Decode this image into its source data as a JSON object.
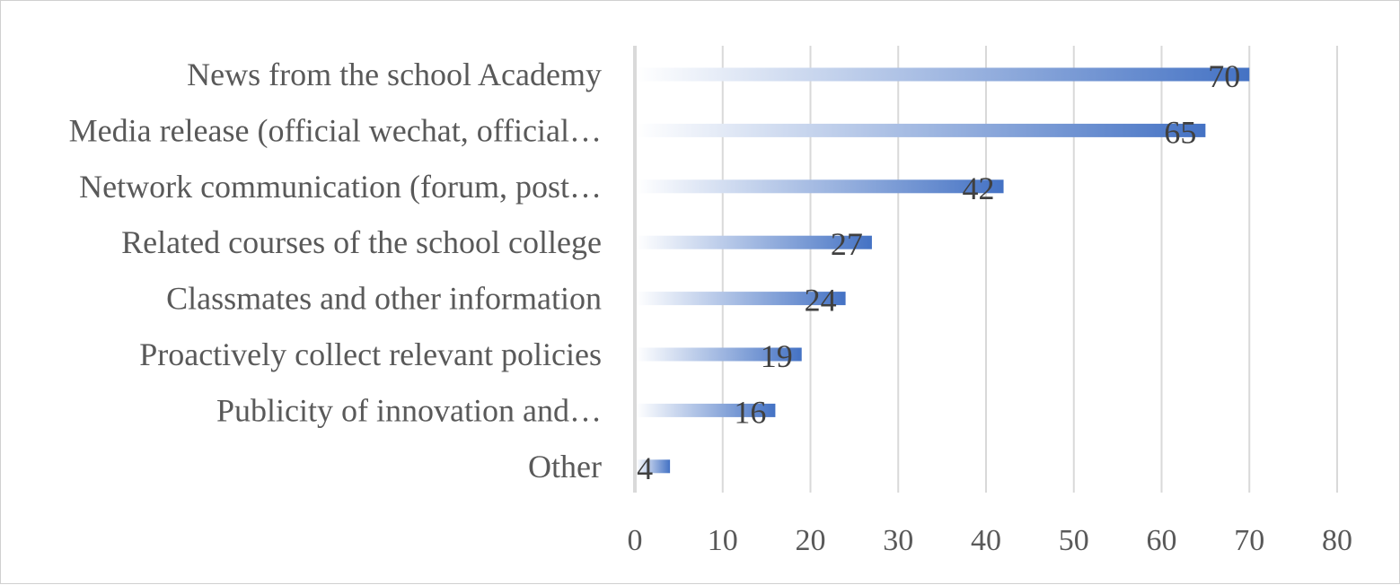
{
  "chart_data": {
    "type": "bar",
    "orientation": "horizontal",
    "categories": [
      "News from the school Academy",
      "Media release (official wechat, official…",
      "Network communication (forum, post…",
      "Related courses of the school college",
      "Classmates and other information",
      "Proactively collect relevant policies",
      "Publicity of innovation and…",
      "Other"
    ],
    "values": [
      70,
      65,
      42,
      27,
      24,
      19,
      16,
      4
    ],
    "data_labels": [
      "70",
      "65",
      "42",
      "27",
      "24",
      "19",
      "16",
      "4"
    ],
    "xlim": [
      0,
      80
    ],
    "x_ticks": [
      0,
      10,
      20,
      30,
      40,
      50,
      60,
      70,
      80
    ],
    "x_tick_labels": [
      "0",
      "10",
      "20",
      "30",
      "40",
      "50",
      "60",
      "70",
      "80"
    ],
    "grid": "vertical",
    "legend": "none",
    "title": "",
    "xlabel": "",
    "ylabel": "",
    "colors": {
      "bar_start": "#ffffff",
      "bar_end": "#4472c4",
      "gridline": "#d9d9d9",
      "axis_line": "#d9d9d9",
      "text": "#595959",
      "data_label": "#404040"
    }
  }
}
